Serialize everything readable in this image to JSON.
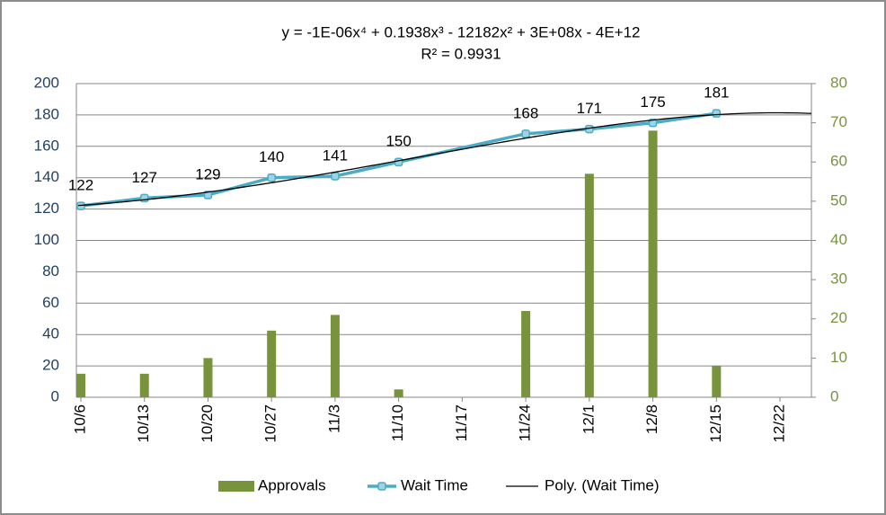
{
  "chart_data": {
    "type": "combo",
    "categories": [
      "10/6",
      "10/13",
      "10/20",
      "10/27",
      "11/3",
      "11/10",
      "11/17",
      "11/24",
      "12/1",
      "12/8",
      "12/15",
      "12/22"
    ],
    "series": [
      {
        "name": "Approvals",
        "type": "bar",
        "axis": "y2",
        "color": "#77933c",
        "x": [
          "10/6",
          "10/13",
          "10/20",
          "10/27",
          "11/3",
          "11/10",
          "11/24",
          "12/1",
          "12/8",
          "12/15"
        ],
        "values": [
          6,
          6,
          10,
          17,
          21,
          2,
          22,
          57,
          68,
          8
        ]
      },
      {
        "name": "Wait Time",
        "type": "line",
        "color": "#4bacc6",
        "data_labels": true,
        "x": [
          "10/6",
          "10/13",
          "10/20",
          "10/27",
          "11/3",
          "11/10",
          "11/24",
          "12/1",
          "12/8",
          "12/15"
        ],
        "values": [
          122,
          127,
          129,
          140,
          141,
          150,
          168,
          171,
          175,
          181
        ]
      }
    ],
    "trendline": {
      "name": "Poly. (Wait Time)",
      "degree": 4,
      "color": "#000000",
      "equation": "y = -1E-06x⁴ + 0.1938x³ - 12182x² + 3E+08x - 4E+12",
      "r_squared": "R² = 0.9931"
    },
    "ylim": [
      0,
      200
    ],
    "yticks": [
      0,
      20,
      40,
      60,
      80,
      100,
      120,
      140,
      160,
      180,
      200
    ],
    "y2lim": [
      0,
      80
    ],
    "y2ticks": [
      0,
      10,
      20,
      30,
      40,
      50,
      60,
      70,
      80
    ],
    "grid": true,
    "legend": "bottom"
  }
}
